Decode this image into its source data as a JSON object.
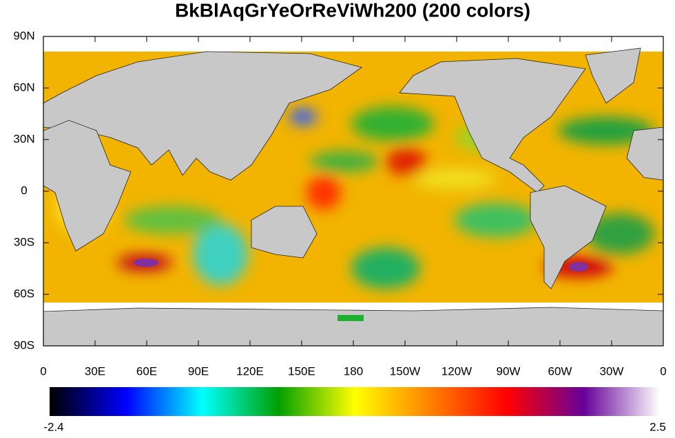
{
  "title": "BkBlAqGrYeOrReViWh200 (200 colors)",
  "map": {
    "xlim": [
      0,
      360
    ],
    "ylim": [
      -90,
      90
    ],
    "xticks": [
      0,
      {
        "value": 30,
        "label": "30E"
      },
      {
        "value": 60,
        "label": "60E"
      },
      {
        "value": 90,
        "label": "90E"
      },
      {
        "value": 120,
        "label": "120E"
      },
      {
        "value": 150,
        "label": "150E"
      },
      180,
      {
        "value": 210,
        "label": "150W"
      },
      {
        "value": 240,
        "label": "120W"
      },
      {
        "value": 270,
        "label": "90W"
      },
      {
        "value": 300,
        "label": "60W"
      },
      {
        "value": 330,
        "label": "30W"
      },
      {
        "value": 360,
        "label": "0"
      }
    ],
    "yticks": [
      {
        "value": 90,
        "label": "90N"
      },
      {
        "value": 60,
        "label": "60N"
      },
      {
        "value": 30,
        "label": "30N"
      },
      0,
      {
        "value": -30,
        "label": "30S"
      },
      {
        "value": -60,
        "label": "60S"
      },
      {
        "value": -90,
        "label": "90S"
      }
    ]
  },
  "colorbar": {
    "min": -2.4,
    "max": 2.5,
    "colors": [
      "#000000",
      "#0000ff",
      "#00ffff",
      "#00a000",
      "#ffff00",
      "#ff8000",
      "#ff0000",
      "#660099",
      "#ffffff"
    ]
  }
}
